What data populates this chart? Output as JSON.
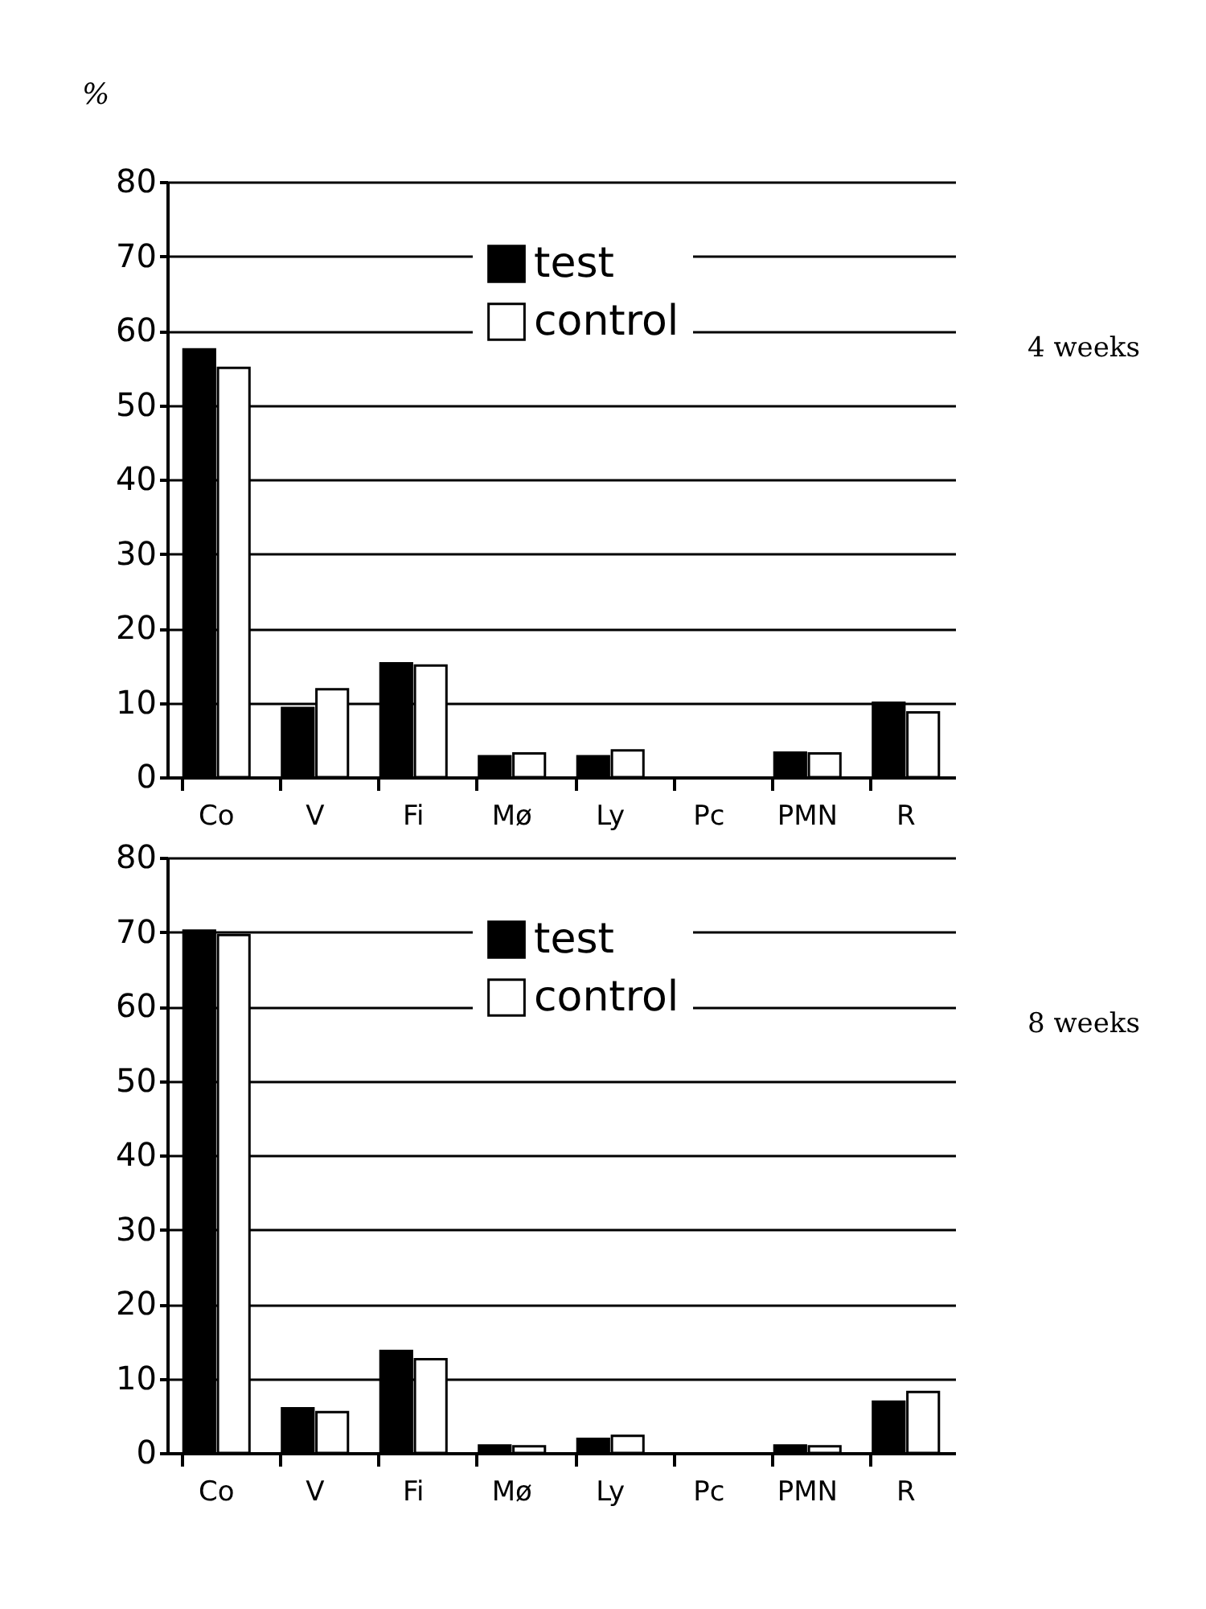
{
  "chart_data": [
    {
      "type": "bar",
      "ylabel": "%",
      "annotations": [
        "4 weeks"
      ],
      "categories": [
        "Co",
        "V",
        "Fi",
        "Mø",
        "Ly",
        "Pc",
        "PMN",
        "R"
      ],
      "series": [
        {
          "name": "test",
          "color": "#000000",
          "values": [
            57.5,
            9.3,
            15.3,
            2.8,
            2.8,
            0,
            3.3,
            10
          ]
        },
        {
          "name": "control",
          "color": "#ffffff",
          "values": [
            55,
            11.8,
            15.0,
            3.2,
            3.6,
            0,
            3.2,
            8.7
          ]
        }
      ],
      "ylim": [
        0,
        80
      ],
      "yticks": [
        0,
        10,
        20,
        30,
        40,
        50,
        60,
        70,
        80
      ],
      "grid": "y",
      "legend": "top"
    },
    {
      "type": "bar",
      "annotations": [
        "8 weeks"
      ],
      "categories": [
        "Co",
        "V",
        "Fi",
        "Mø",
        "Ly",
        "Pc",
        "PMN",
        "R"
      ],
      "series": [
        {
          "name": "test",
          "color": "#000000",
          "values": [
            70.2,
            6,
            13.7,
            1,
            1.9,
            0,
            1,
            6.9
          ]
        },
        {
          "name": "control",
          "color": "#ffffff",
          "values": [
            69.6,
            5.5,
            12.6,
            0.9,
            2.3,
            0,
            0.9,
            8.2
          ]
        }
      ],
      "ylim": [
        0,
        80
      ],
      "yticks": [
        0,
        10,
        20,
        30,
        40,
        50,
        60,
        70,
        80
      ],
      "grid": "y",
      "legend": "top"
    }
  ]
}
